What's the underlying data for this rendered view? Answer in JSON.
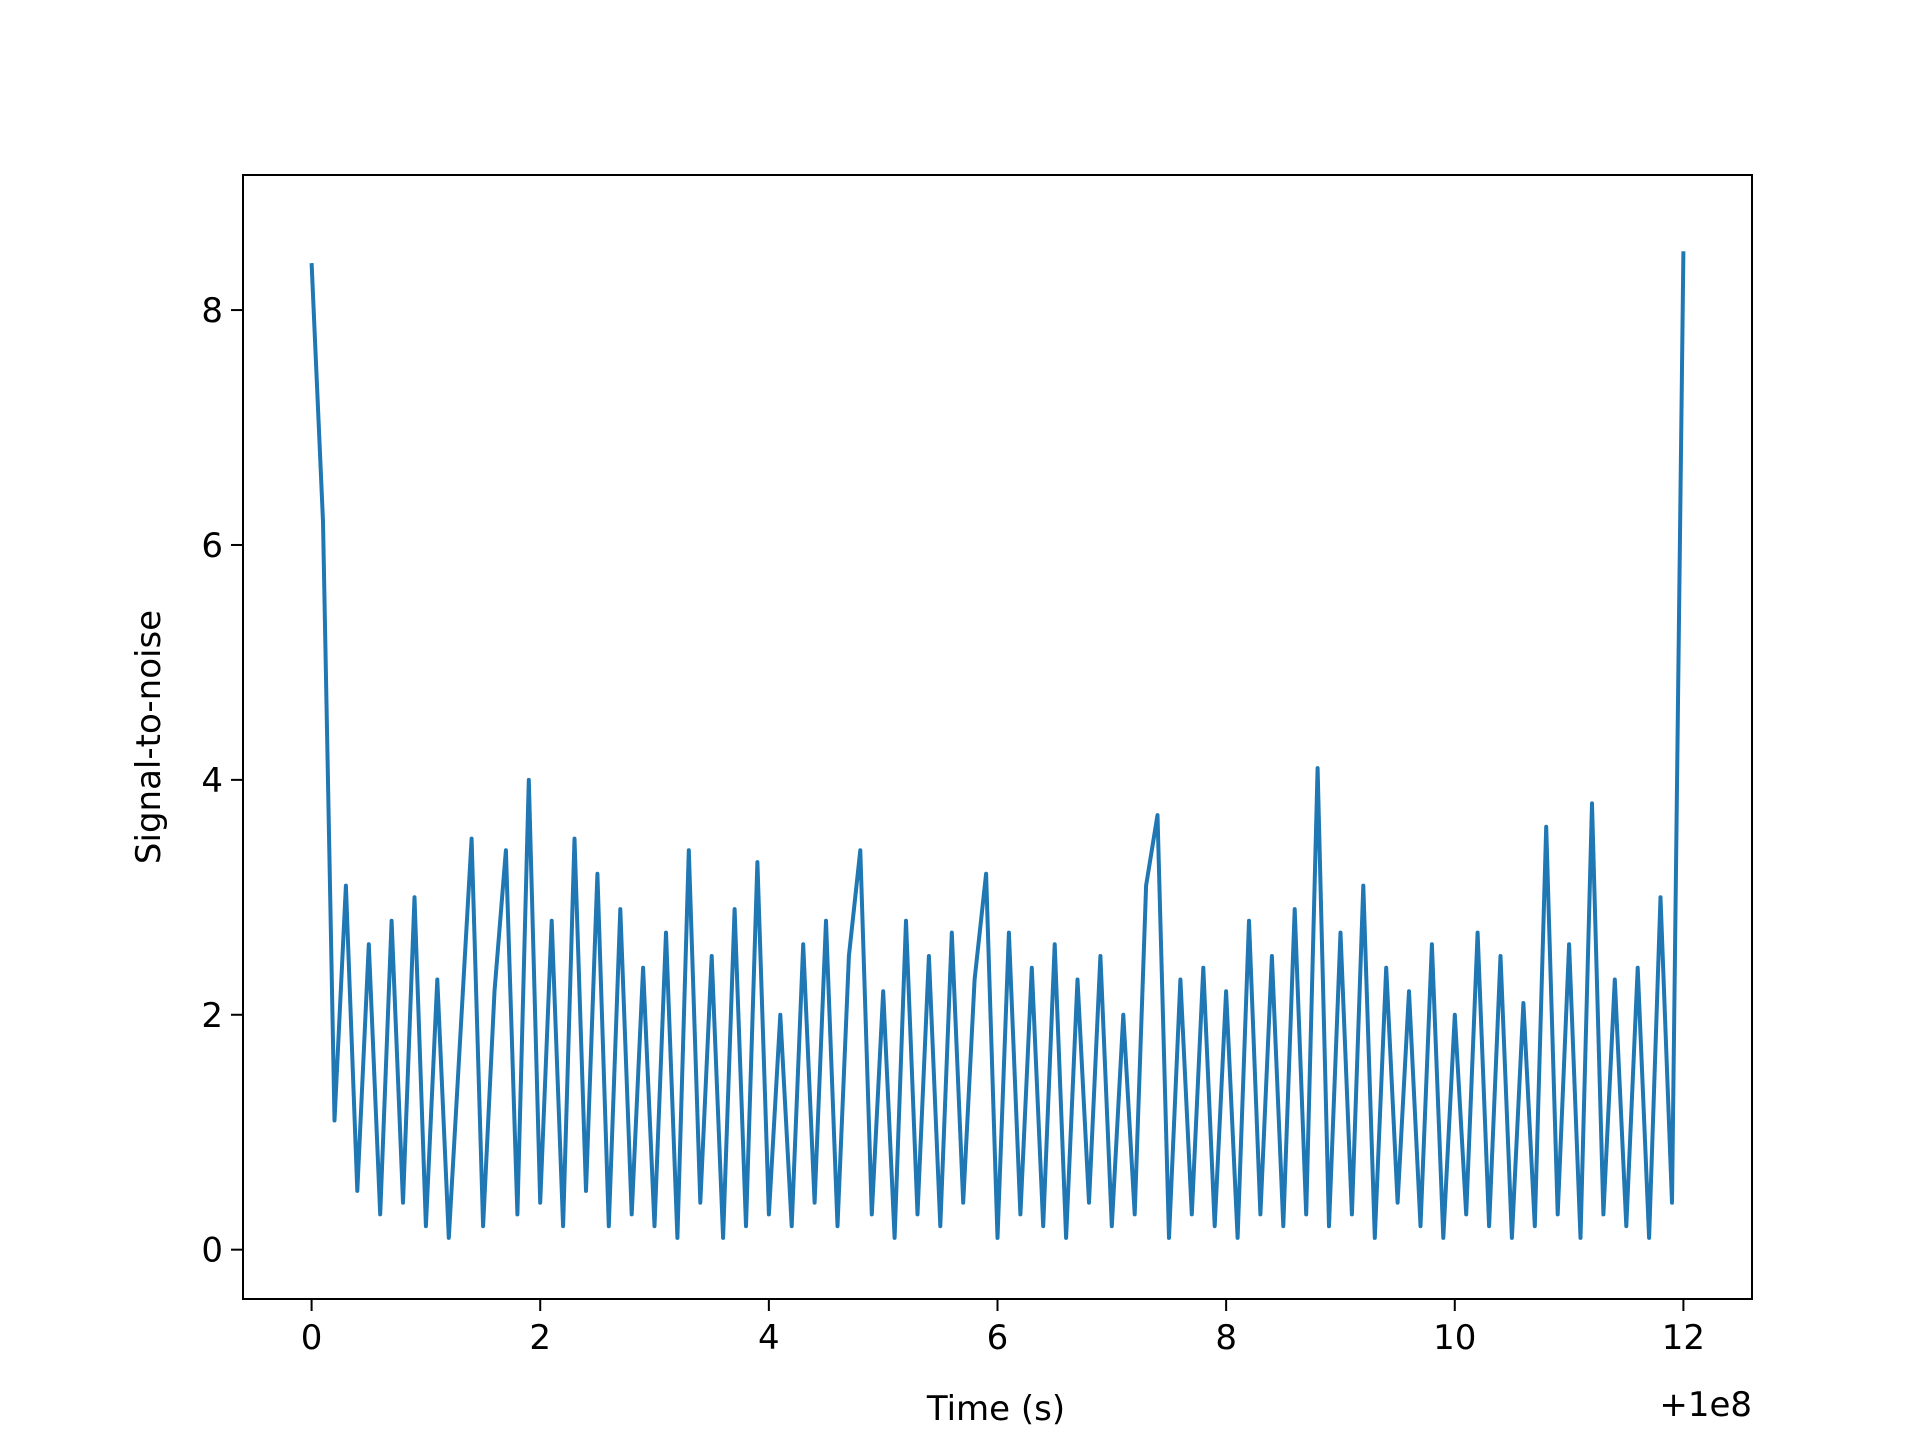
{
  "chart_data": {
    "type": "line",
    "xlabel": "Time (s)",
    "ylabel": "Signal-to-noise",
    "x_offset_label": "+1e8",
    "x": [
      0.0,
      0.1,
      0.2,
      0.3,
      0.4,
      0.5,
      0.6,
      0.7,
      0.8,
      0.9,
      1.0,
      1.1,
      1.2,
      1.3,
      1.4,
      1.5,
      1.6,
      1.7,
      1.8,
      1.9,
      2.0,
      2.1,
      2.2,
      2.3,
      2.4,
      2.5,
      2.6,
      2.7,
      2.8,
      2.9,
      3.0,
      3.1,
      3.2,
      3.3,
      3.4,
      3.5,
      3.6,
      3.7,
      3.8,
      3.9,
      4.0,
      4.1,
      4.2,
      4.3,
      4.4,
      4.5,
      4.6,
      4.7,
      4.8,
      4.9,
      5.0,
      5.1,
      5.2,
      5.3,
      5.4,
      5.5,
      5.6,
      5.7,
      5.8,
      5.9,
      6.0,
      6.1,
      6.2,
      6.3,
      6.4,
      6.5,
      6.6,
      6.7,
      6.8,
      6.9,
      7.0,
      7.1,
      7.2,
      7.3,
      7.4,
      7.5,
      7.6,
      7.7,
      7.8,
      7.9,
      8.0,
      8.1,
      8.2,
      8.3,
      8.4,
      8.5,
      8.6,
      8.7,
      8.8,
      8.9,
      9.0,
      9.1,
      9.2,
      9.3,
      9.4,
      9.5,
      9.6,
      9.7,
      9.8,
      9.9,
      10.0,
      10.1,
      10.2,
      10.3,
      10.4,
      10.5,
      10.6,
      10.7,
      10.8,
      10.9,
      11.0,
      11.1,
      11.2,
      11.3,
      11.4,
      11.5,
      11.6,
      11.7,
      11.8,
      11.9,
      12.0
    ],
    "series": [
      {
        "color": "#1f77b4",
        "values": [
          8.4,
          6.2,
          1.1,
          3.1,
          0.5,
          2.6,
          0.3,
          2.8,
          0.4,
          3.0,
          0.2,
          2.3,
          0.1,
          1.8,
          3.5,
          0.2,
          2.2,
          3.4,
          0.3,
          4.0,
          0.4,
          2.8,
          0.2,
          3.5,
          0.5,
          3.2,
          0.2,
          2.9,
          0.3,
          2.4,
          0.2,
          2.7,
          0.1,
          3.4,
          0.4,
          2.5,
          0.1,
          2.9,
          0.2,
          3.3,
          0.3,
          2.0,
          0.2,
          2.6,
          0.4,
          2.8,
          0.2,
          2.5,
          3.4,
          0.3,
          2.2,
          0.1,
          2.8,
          0.3,
          2.5,
          0.2,
          2.7,
          0.4,
          2.3,
          3.2,
          0.1,
          2.7,
          0.3,
          2.4,
          0.2,
          2.6,
          0.1,
          2.3,
          0.4,
          2.5,
          0.2,
          2.0,
          0.3,
          3.1,
          3.7,
          0.1,
          2.3,
          0.3,
          2.4,
          0.2,
          2.2,
          0.1,
          2.8,
          0.3,
          2.5,
          0.2,
          2.9,
          0.3,
          4.1,
          0.2,
          2.7,
          0.3,
          3.1,
          0.1,
          2.4,
          0.4,
          2.2,
          0.2,
          2.6,
          0.1,
          2.0,
          0.3,
          2.7,
          0.2,
          2.5,
          0.1,
          2.1,
          0.2,
          3.6,
          0.3,
          2.6,
          0.1,
          3.8,
          0.3,
          2.3,
          0.2,
          2.4,
          0.1,
          3.0,
          0.4,
          8.5
        ]
      }
    ],
    "xlim": [
      -0.6,
      12.6
    ],
    "ylim": [
      -0.42,
      9.15
    ],
    "xticks": [
      0,
      2,
      4,
      6,
      8,
      10,
      12
    ],
    "yticks": [
      0,
      2,
      4,
      6,
      8
    ]
  }
}
